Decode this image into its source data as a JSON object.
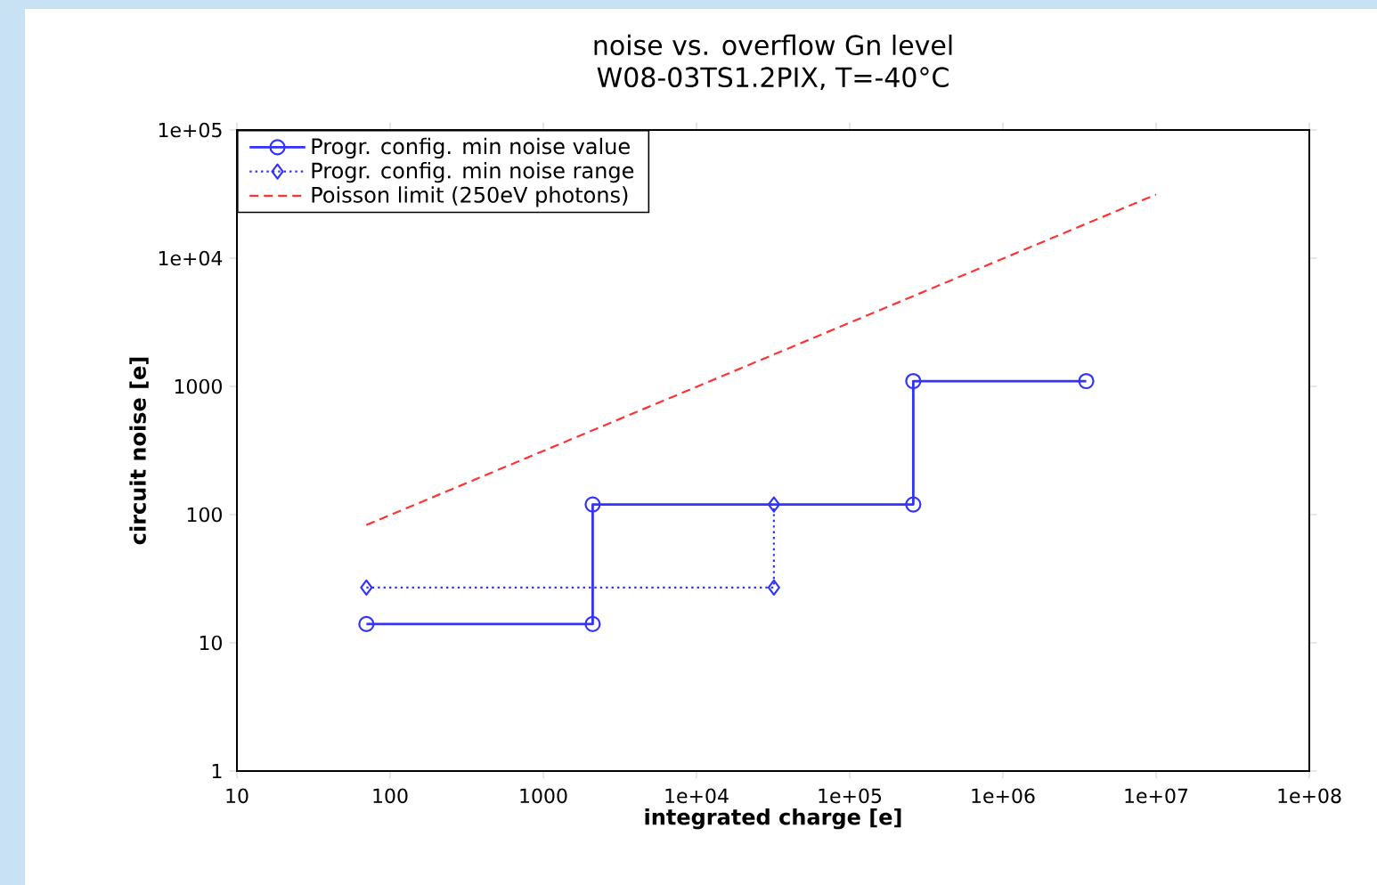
{
  "chart_data": {
    "type": "line",
    "title": "noise vs. overflow Gn level",
    "subtitle": "W08-03TS1.2PIX, T=-40°C",
    "xlabel": "integrated charge [e]",
    "ylabel": "circuit noise [e]",
    "log": "xy",
    "xlim": [
      10,
      100000000
    ],
    "ylim": [
      1,
      100000
    ],
    "xticks": [
      10,
      100,
      1000,
      {
        "value": 10000,
        "label": "1e+04"
      },
      {
        "value": 100000,
        "label": "1e+05"
      },
      {
        "value": 1000000,
        "label": "1e+06"
      },
      {
        "value": 10000000,
        "label": "1e+07"
      },
      {
        "value": 100000000,
        "label": "1e+08"
      }
    ],
    "yticks": [
      1,
      10,
      100,
      1000,
      {
        "value": 10000,
        "label": "1e+04"
      },
      {
        "value": 100000,
        "label": "1e+05"
      }
    ],
    "legend": "top left",
    "grid": false,
    "series": [
      {
        "name": "Progr. config. min noise value",
        "color": "#3333ff",
        "marker": "circle",
        "line_style": "solid",
        "x": [
          70,
          2100,
          2100,
          260000,
          260000,
          3500000
        ],
        "values": [
          14,
          14,
          120,
          120,
          1100,
          1100
        ]
      },
      {
        "name": "Progr. config. min noise range",
        "color": "#3333ff",
        "marker": "diamond",
        "line_style": "dotted",
        "x": [
          70,
          32000,
          32000
        ],
        "values": [
          27,
          27,
          120
        ]
      },
      {
        "name": "Poisson limit (250eV photons)",
        "color": "#ff3333",
        "marker": "none",
        "line_style": "dashed",
        "x": [
          70,
          10000000
        ],
        "values": [
          83,
          31400
        ]
      }
    ]
  }
}
